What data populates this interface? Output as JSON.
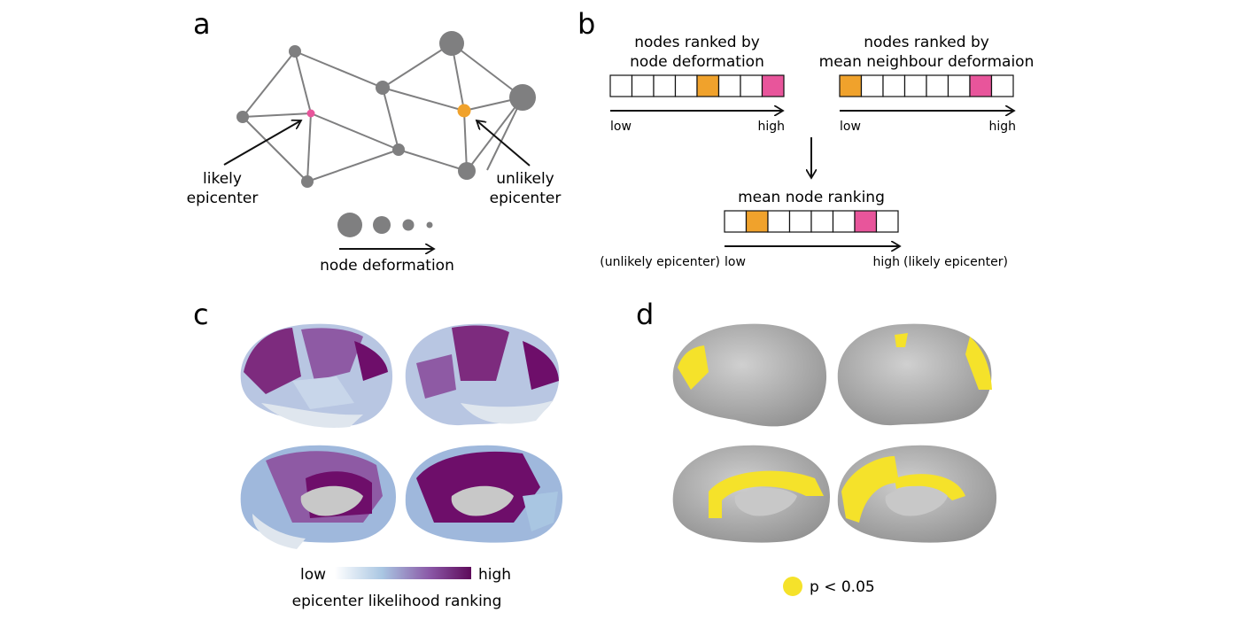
{
  "panels": {
    "a": {
      "letter": "a",
      "likely_label_1": "likely",
      "likely_label_2": "epicenter",
      "unlikely_label_1": "unlikely",
      "unlikely_label_2": "epicenter",
      "axis_label": "node deformation"
    },
    "b": {
      "letter": "b",
      "rank1_title_1": "nodes ranked by",
      "rank1_title_2": "node deformation",
      "rank2_title_1": "nodes ranked by",
      "rank2_title_2": "mean neighbour deformaion",
      "low": "low",
      "high": "high",
      "mean_title": "mean node ranking",
      "left_note": "(unlikely epicenter)",
      "right_note": "(likely epicenter)"
    },
    "c": {
      "letter": "c",
      "colorbar_low": "low",
      "colorbar_high": "high",
      "colorbar_label": "epicenter likelihood ranking"
    },
    "d": {
      "letter": "d",
      "legend_label": "p < 0.05"
    }
  },
  "colors": {
    "node": "#7f7f80",
    "pink": "#e8559b",
    "orange": "#f0a22c",
    "yellow": "#f5e22a",
    "purple_dark": "#6e0e6a",
    "purple_mid": "#8a57a6",
    "blue_light": "#a9c6e2",
    "cortex_gray": "#a5a5a5"
  }
}
